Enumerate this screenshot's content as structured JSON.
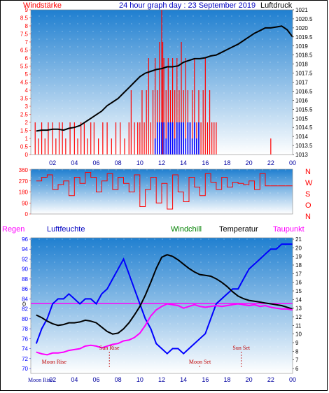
{
  "header": {
    "left_label": "Windstärke",
    "title": "24 hour graph day : 23 September 2019",
    "right_label": "Luftdruck"
  },
  "colors": {
    "wind": "#ff0000",
    "gust": "#0000ff",
    "pressure": "#000000",
    "humidity": "#0000ff",
    "temperature": "#000000",
    "dewpoint": "#ff00ff",
    "windchill": "#008000",
    "frost_line": "#ff00ff",
    "plot_bg_top": "#1f7fd0",
    "plot_bg_bottom": "#ffffff"
  },
  "direction_labels": [
    "N",
    "W",
    "S",
    "O",
    "N"
  ],
  "chart_data": [
    {
      "type": "line",
      "name": "wind-pressure",
      "x_ticks": [
        "02",
        "04",
        "06",
        "08",
        "10",
        "12",
        "14",
        "16",
        "18",
        "20",
        "22",
        "00"
      ],
      "left_axis": {
        "label": "Windstärke",
        "range": [
          0,
          9
        ],
        "ticks": [
          "0",
          "0.5",
          "1",
          "1.5",
          "2",
          "2.5",
          "3",
          "3.5",
          "4",
          "4.5",
          "5",
          "5.5",
          "6",
          "6.5",
          "7",
          "7.5",
          "8",
          "8.5",
          "9"
        ]
      },
      "right_axis": {
        "label": "Luftdruck",
        "range": [
          1013,
          1021
        ],
        "ticks": [
          "1013",
          "1013.5",
          "1014",
          "1014.5",
          "1015",
          "1015.5",
          "1016",
          "1016.5",
          "1017",
          "1017.5",
          "1018",
          "1018.5",
          "1019",
          "1019.5",
          "1020",
          "1020.5",
          "1021"
        ]
      },
      "series": [
        {
          "key": "pressure",
          "axis": "right",
          "x": [
            0.5,
            1,
            1.5,
            2,
            2.5,
            3,
            3.5,
            4,
            4.5,
            5,
            5.5,
            6,
            6.5,
            7,
            7.5,
            8,
            8.5,
            9,
            9.5,
            10,
            10.5,
            11,
            11.5,
            12,
            12.5,
            13,
            13.5,
            14,
            14.5,
            15,
            15.5,
            16,
            16.5,
            17,
            17.5,
            18,
            18.5,
            19,
            19.5,
            20,
            20.5,
            21,
            21.5,
            22,
            22.5,
            23,
            23.5,
            24
          ],
          "y": [
            1014.3,
            1014.35,
            1014.35,
            1014.4,
            1014.4,
            1014.35,
            1014.45,
            1014.5,
            1014.6,
            1014.8,
            1015.0,
            1015.2,
            1015.4,
            1015.7,
            1015.9,
            1016.1,
            1016.4,
            1016.7,
            1017.0,
            1017.3,
            1017.5,
            1017.6,
            1017.7,
            1017.75,
            1017.85,
            1017.85,
            1017.9,
            1018.1,
            1018.2,
            1018.3,
            1018.3,
            1018.35,
            1018.45,
            1018.5,
            1018.65,
            1018.8,
            1018.95,
            1019.1,
            1019.3,
            1019.5,
            1019.7,
            1019.85,
            1020.0,
            1020.0,
            1020.05,
            1020.1,
            1019.9,
            1019.5
          ]
        },
        {
          "key": "wind",
          "axis": "left",
          "style": "bars",
          "x": [
            0.4,
            0.7,
            1.0,
            1.3,
            1.6,
            2.0,
            2.3,
            2.6,
            2.9,
            3.2,
            3.6,
            4.0,
            4.3,
            4.6,
            4.9,
            5.2,
            5.5,
            5.8,
            6.2,
            6.6,
            7.0,
            7.4,
            7.8,
            8.2,
            8.6,
            9.0,
            9.2,
            9.5,
            9.8,
            10.0,
            10.2,
            10.4,
            10.6,
            10.8,
            11.0,
            11.2,
            11.4,
            11.6,
            11.8,
            12.0,
            12.1,
            12.2,
            12.4,
            12.6,
            12.8,
            13.0,
            13.2,
            13.4,
            13.6,
            13.8,
            14.0,
            14.2,
            14.4,
            14.6,
            14.8,
            15.0,
            15.2,
            15.4,
            15.6,
            15.8,
            16.0,
            16.2,
            16.4,
            16.6,
            16.8,
            17.0,
            22.0
          ],
          "y": [
            2,
            1,
            2,
            1,
            2,
            2,
            1,
            2,
            2,
            1,
            2,
            2,
            1,
            2,
            2,
            1,
            2,
            2,
            1,
            2,
            2,
            1,
            2,
            2,
            1,
            2,
            4,
            2,
            2,
            2,
            4,
            2,
            4,
            6,
            2,
            4,
            6,
            4,
            7,
            9,
            7,
            6,
            4,
            6,
            4,
            6,
            4,
            6,
            4,
            7,
            4,
            6,
            4,
            2,
            4,
            6,
            2,
            4,
            2,
            4,
            6,
            2,
            4,
            2,
            2,
            2,
            1
          ]
        },
        {
          "key": "gust",
          "axis": "left",
          "style": "bars",
          "x": [
            11.4,
            11.6,
            11.8,
            12.0,
            12.2,
            12.4,
            12.6,
            12.8,
            13.0,
            13.2,
            13.4,
            13.6,
            13.8,
            14.0,
            14.2,
            14.4,
            14.6,
            14.8,
            15.0,
            15.2,
            15.4
          ],
          "y": [
            1,
            2,
            2,
            2,
            2,
            1,
            2,
            2,
            2,
            1,
            2,
            2,
            2,
            2,
            1,
            2,
            2,
            1,
            2,
            1,
            2
          ]
        }
      ]
    },
    {
      "type": "scatter",
      "name": "wind-direction",
      "x_ticks": [
        "02",
        "04",
        "06",
        "08",
        "10",
        "12",
        "14",
        "16",
        "18",
        "20",
        "22",
        "00"
      ],
      "left_axis": {
        "range": [
          0,
          360
        ],
        "ticks": [
          "0",
          "90",
          "180",
          "270",
          "360"
        ]
      },
      "series": [
        {
          "key": "direction",
          "x": [
            0.5,
            1.0,
            1.5,
            2.0,
            2.5,
            3.0,
            3.5,
            4.0,
            4.5,
            5.0,
            5.5,
            6.0,
            6.5,
            7.0,
            7.5,
            8.0,
            8.5,
            9.0,
            9.5,
            10.0,
            10.5,
            11.0,
            11.5,
            12.0,
            12.5,
            13.0,
            13.5,
            14.0,
            14.5,
            15.0,
            15.5,
            16.0,
            16.5,
            17.0,
            17.5,
            18.0,
            18.5,
            19.0,
            19.5,
            20.0,
            20.5,
            21.0,
            21.5,
            22.0,
            22.5,
            23.0,
            23.5,
            24.0
          ],
          "y": [
            270,
            300,
            320,
            200,
            240,
            270,
            150,
            300,
            250,
            340,
            300,
            180,
            270,
            330,
            200,
            300,
            250,
            180,
            320,
            60,
            200,
            300,
            90,
            250,
            40,
            320,
            180,
            100,
            300,
            220,
            150,
            330,
            260,
            200,
            300,
            220,
            260,
            250,
            240,
            270,
            200,
            330,
            230,
            230,
            230,
            230,
            230,
            230
          ]
        }
      ]
    },
    {
      "type": "line",
      "name": "humidity-temperature",
      "x_ticks": [
        "02",
        "04",
        "06",
        "08",
        "10",
        "12",
        "14",
        "16",
        "18",
        "20",
        "22",
        "00"
      ],
      "legend": [
        "Regen",
        "Luftfeuchte",
        "Windchill",
        "Temperatur",
        "Taupunkt"
      ],
      "left_axis": {
        "range": [
          70,
          96
        ],
        "ticks": [
          "70",
          "72",
          "74",
          "76",
          "78",
          "80",
          "82",
          "84",
          "86",
          "88",
          "90",
          "92",
          "94",
          "96"
        ]
      },
      "right_axis": {
        "range": [
          6,
          21
        ],
        "ticks": [
          "6",
          "7",
          "8",
          "9",
          "10",
          "11",
          "12",
          "13",
          "14",
          "15",
          "16",
          "17",
          "18",
          "19",
          "20",
          "21"
        ]
      },
      "zero_line_label": "0",
      "annotations": [
        {
          "text": "Sun Rise",
          "x": 7.2
        },
        {
          "text": "Sun Set",
          "x": 19.3
        },
        {
          "text": "Moon Rise",
          "x": 1.0
        },
        {
          "text": "Moon Set",
          "x": 15.5
        },
        {
          "text": "Moon Rise",
          "x": 1.0
        }
      ],
      "series": [
        {
          "key": "humidity",
          "axis": "left",
          "x": [
            0.5,
            1.0,
            1.5,
            2.0,
            2.5,
            3.0,
            3.5,
            4.0,
            4.5,
            5.0,
            5.5,
            6.0,
            6.5,
            7.0,
            7.5,
            8.0,
            8.5,
            9.0,
            9.5,
            10.0,
            10.5,
            11.0,
            11.5,
            12.0,
            12.5,
            13.0,
            13.5,
            14.0,
            14.5,
            15.0,
            15.5,
            16.0,
            16.5,
            17.0,
            17.5,
            18.0,
            18.5,
            19.0,
            19.5,
            20.0,
            20.5,
            21.0,
            21.5,
            22.0,
            22.5,
            23.0,
            23.5,
            24.0
          ],
          "y": [
            75,
            78,
            80,
            83,
            84,
            84,
            85,
            84,
            83,
            84,
            84,
            83,
            85,
            86,
            88,
            90,
            92,
            89,
            86,
            83,
            80,
            78,
            75,
            74,
            73,
            74,
            74,
            73,
            74,
            75,
            76,
            77,
            80,
            83,
            84,
            85,
            86,
            86,
            88,
            90,
            91,
            92,
            93,
            94,
            94,
            95,
            95,
            95
          ]
        },
        {
          "key": "temperature",
          "axis": "right",
          "x": [
            0.5,
            1.0,
            1.5,
            2.0,
            2.5,
            3.0,
            3.5,
            4.0,
            4.5,
            5.0,
            5.5,
            6.0,
            6.5,
            7.0,
            7.5,
            8.0,
            8.5,
            9.0,
            9.5,
            10.0,
            10.5,
            11.0,
            11.5,
            12.0,
            12.5,
            13.0,
            13.5,
            14.0,
            14.5,
            15.0,
            15.5,
            16.0,
            16.5,
            17.0,
            17.5,
            18.0,
            18.5,
            19.0,
            19.5,
            20.0,
            20.5,
            21.0,
            21.5,
            22.0,
            22.5,
            23.0,
            23.5,
            24.0
          ],
          "y": [
            12.2,
            11.9,
            11.5,
            11.2,
            11.0,
            11.1,
            11.3,
            11.3,
            11.4,
            11.6,
            11.5,
            11.3,
            10.8,
            10.3,
            10.0,
            10.1,
            10.6,
            11.3,
            12.2,
            13.2,
            14.5,
            16.0,
            17.6,
            18.9,
            19.2,
            19.0,
            18.6,
            18.1,
            17.6,
            17.2,
            16.9,
            16.8,
            16.7,
            16.4,
            16.0,
            15.5,
            14.9,
            14.4,
            14.1,
            13.9,
            13.8,
            13.7,
            13.6,
            13.5,
            13.4,
            13.3,
            13.1,
            12.9
          ]
        },
        {
          "key": "dewpoint",
          "axis": "right",
          "x": [
            0.5,
            1.0,
            1.5,
            2.0,
            2.5,
            3.0,
            3.5,
            4.0,
            4.5,
            5.0,
            5.5,
            6.0,
            6.5,
            7.0,
            7.5,
            8.0,
            8.5,
            9.0,
            9.5,
            10.0,
            10.5,
            11.0,
            11.5,
            12.0,
            12.5,
            13.0,
            13.5,
            14.0,
            14.5,
            15.0,
            15.5,
            16.0,
            16.5,
            17.0,
            17.5,
            18.0,
            18.5,
            19.0,
            19.5,
            20.0,
            20.5,
            21.0,
            21.5,
            22.0,
            22.5,
            23.0,
            23.5,
            24.0
          ],
          "y": [
            7.9,
            7.7,
            7.6,
            7.8,
            7.8,
            7.9,
            8.1,
            8.2,
            8.3,
            8.6,
            8.7,
            8.6,
            8.4,
            8.6,
            8.8,
            8.9,
            9.2,
            9.3,
            9.6,
            10.1,
            11.0,
            12.1,
            12.8,
            13.2,
            13.5,
            13.4,
            13.3,
            13.0,
            13.2,
            13.4,
            13.2,
            13.1,
            13.2,
            13.3,
            13.2,
            13.3,
            13.4,
            13.5,
            13.4,
            13.3,
            13.4,
            13.2,
            13.3,
            13.1,
            13.0,
            12.9,
            12.9,
            12.8
          ]
        }
      ]
    }
  ]
}
